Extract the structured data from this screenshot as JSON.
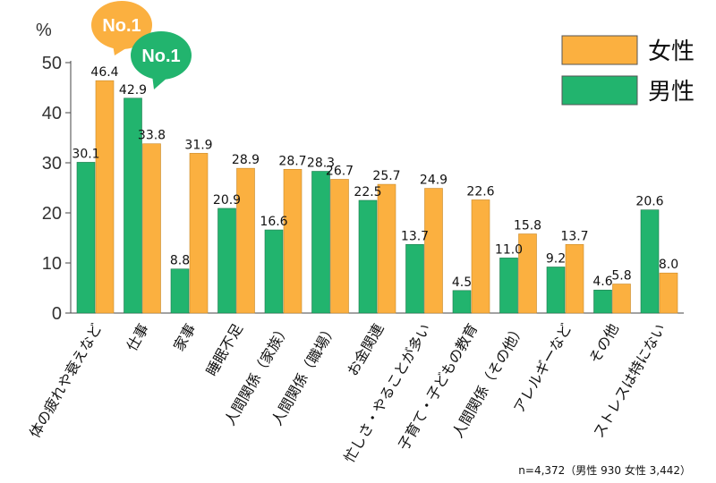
{
  "chart_data": {
    "type": "bar",
    "unit_label": "%",
    "ylim": [
      0,
      50
    ],
    "yticks": [
      0,
      10,
      20,
      30,
      40,
      50
    ],
    "categories": [
      "体の疲れや衰えなど",
      "仕事",
      "家事",
      "睡眠不足",
      "人間関係（家族）",
      "人間関係（職場）",
      "お金関連",
      "忙しさ・やることが多い",
      "子育て・子どもの教育",
      "人間関係（その他）",
      "アレルギーなど",
      "その他",
      "ストレスは特にない"
    ],
    "series": [
      {
        "name": "男性",
        "color": "#22b46e",
        "values": [
          30.1,
          42.9,
          8.8,
          20.9,
          16.6,
          28.3,
          22.5,
          13.7,
          4.5,
          11.0,
          9.2,
          4.6,
          20.6
        ]
      },
      {
        "name": "女性",
        "color": "#fbb040",
        "values": [
          46.4,
          33.8,
          31.9,
          28.9,
          28.7,
          26.7,
          25.7,
          24.9,
          22.6,
          15.8,
          13.7,
          5.8,
          8.0
        ]
      }
    ],
    "value_labels": {
      "男性": [
        "30.1",
        "42.9",
        "8.8",
        "20.9",
        "16.6",
        "28.3",
        "22.5",
        "13.7",
        "4.5",
        "11.0",
        "9.2",
        "4.6",
        "20.6"
      ],
      "女性": [
        "46.4",
        "33.8",
        "31.9",
        "28.9",
        "28.7",
        "26.7",
        "25.7",
        "24.9",
        "22.6",
        "15.8",
        "13.7",
        "5.8",
        "8.0"
      ]
    },
    "legend": {
      "placement": "top-right",
      "order": [
        "女性",
        "男性"
      ]
    },
    "badges": [
      {
        "text": "No.1",
        "series": "女性",
        "category_index": 0,
        "color": "#fbb040"
      },
      {
        "text": "No.1",
        "series": "男性",
        "category_index": 1,
        "color": "#22b46e"
      }
    ],
    "grid": false
  },
  "footnote": "n=4,372（男性 930 女性 3,442）"
}
